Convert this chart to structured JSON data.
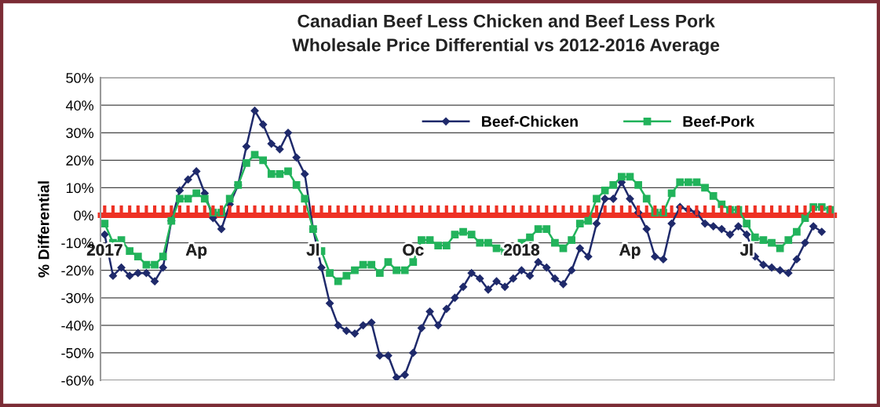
{
  "chart_data": {
    "type": "line",
    "title": "Canadian Beef Less Chicken and Beef Less Pork\nWholesale Price Differential vs 2012-2016 Average",
    "ylabel": "% Differential",
    "categories": [
      "2017",
      null,
      null,
      null,
      null,
      null,
      null,
      null,
      null,
      null,
      null,
      "Ap",
      null,
      null,
      null,
      null,
      null,
      null,
      null,
      null,
      null,
      null,
      null,
      null,
      null,
      "Jl",
      null,
      null,
      null,
      null,
      null,
      null,
      null,
      null,
      null,
      null,
      null,
      "Oc",
      null,
      null,
      null,
      null,
      null,
      null,
      null,
      null,
      null,
      null,
      null,
      null,
      "2018",
      null,
      null,
      null,
      null,
      null,
      null,
      null,
      null,
      null,
      null,
      null,
      null,
      "Ap",
      null,
      null,
      null,
      null,
      null,
      null,
      null,
      null,
      null,
      null,
      null,
      null,
      null,
      "Jl",
      null,
      null,
      null,
      null,
      null,
      null,
      null,
      null,
      null,
      null
    ],
    "series": [
      {
        "name": "Beef-Chicken",
        "color": "#1f2a6b",
        "marker": "diamond",
        "values": [
          -7,
          -22,
          -19,
          -22,
          -21,
          -21,
          -24,
          -19,
          -2,
          9,
          13,
          16,
          8,
          -1,
          -5,
          4,
          11,
          25,
          38,
          33,
          26,
          24,
          30,
          21,
          15,
          -5,
          -19,
          -32,
          -40,
          -42,
          -43,
          -40,
          -39,
          -51,
          -51,
          -59,
          -58,
          -50,
          -41,
          -35,
          -40,
          -34,
          -30,
          -26,
          -21,
          -23,
          -27,
          -24,
          -26,
          -23,
          -20,
          -22,
          -17,
          -19,
          -23,
          -25,
          -20,
          -12,
          -15,
          -3,
          6,
          6,
          12,
          6,
          1,
          -5,
          -15,
          -16,
          -3,
          3,
          2,
          1,
          -3,
          -4,
          -5,
          -7,
          -4,
          -7,
          -15,
          -18,
          -19,
          -20,
          -21,
          -16,
          -10,
          -4,
          -6,
          null
        ]
      },
      {
        "name": "Beef-Pork",
        "color": "#22b35b",
        "marker": "square",
        "values": [
          -3,
          -10,
          -9,
          -13,
          -15,
          -18,
          -18,
          -15,
          -2,
          6,
          6,
          8,
          6,
          1,
          1,
          6,
          11,
          19,
          22,
          20,
          15,
          15,
          16,
          11,
          6,
          -5,
          -13,
          -21,
          -24,
          -22,
          -20,
          -18,
          -18,
          -21,
          -17,
          -20,
          -20,
          -17,
          -9,
          -9,
          -11,
          -11,
          -7,
          -6,
          -7,
          -10,
          -10,
          -12,
          -13,
          -12,
          -10,
          -8,
          -5,
          -5,
          -10,
          -12,
          -9,
          -3,
          -2,
          6,
          9,
          11,
          14,
          14,
          11,
          6,
          1,
          1,
          8,
          12,
          12,
          12,
          10,
          7,
          4,
          2,
          2,
          -3,
          -8,
          -9,
          -10,
          -12,
          -9,
          -6,
          -1,
          3,
          3,
          2
        ]
      }
    ],
    "ylim": [
      -60,
      50
    ],
    "yticks": [
      {
        "value": -60,
        "label": "-60%"
      },
      {
        "value": -50,
        "label": "-50%"
      },
      {
        "value": -40,
        "label": "-40%"
      },
      {
        "value": -30,
        "label": "-30%"
      },
      {
        "value": -20,
        "label": "-20%"
      },
      {
        "value": -10,
        "label": "-10%"
      },
      {
        "value": 0,
        "label": "0%"
      },
      {
        "value": 10,
        "label": "10%"
      },
      {
        "value": 20,
        "label": "20%"
      },
      {
        "value": 30,
        "label": "30%"
      },
      {
        "value": 40,
        "label": "40%"
      },
      {
        "value": 50,
        "label": "50%"
      }
    ],
    "grid": "y",
    "legend": "top right",
    "line_style": "solid"
  }
}
